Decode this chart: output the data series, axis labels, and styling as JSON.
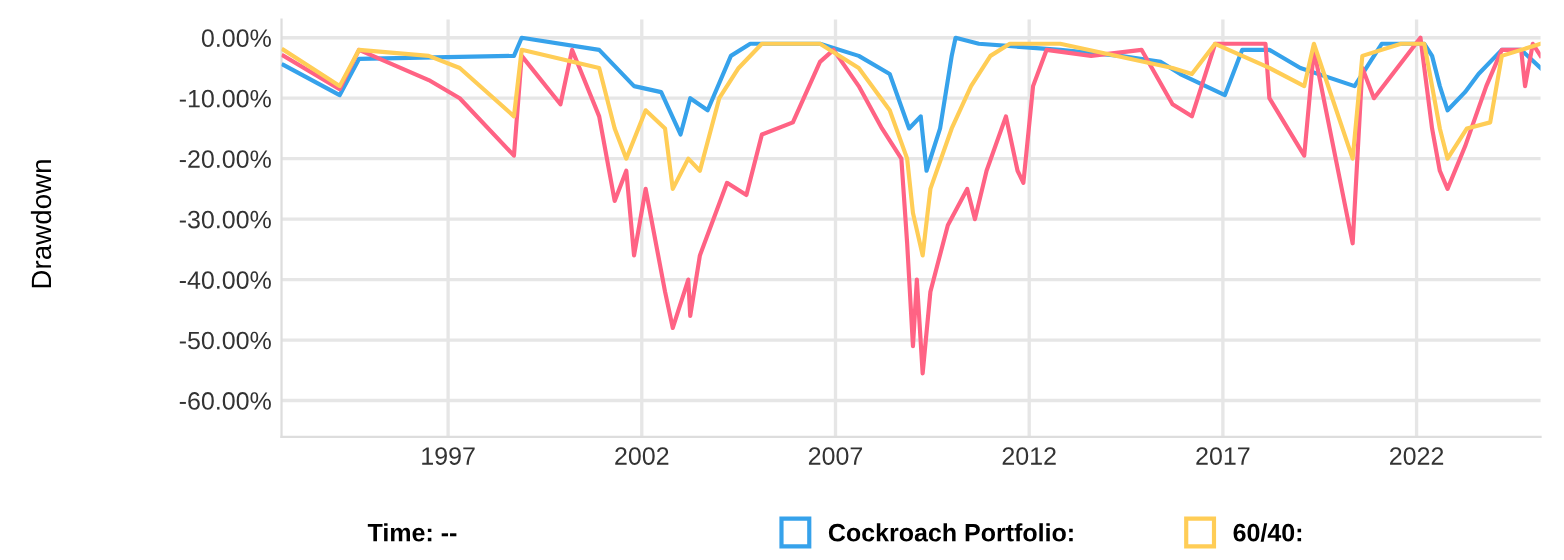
{
  "chart_data": {
    "type": "line",
    "ylabel": "Drawdown",
    "xlim": [
      1992.7,
      2025.2
    ],
    "xticks": [
      1997,
      2002,
      2007,
      2012,
      2017,
      2022
    ],
    "ylim": [
      -66,
      3
    ],
    "yticks": [
      {
        "value": 0,
        "label": "0.00%"
      },
      {
        "value": -10,
        "label": "-10.00%"
      },
      {
        "value": -20,
        "label": "-20.00%"
      },
      {
        "value": -30,
        "label": "-30.00%"
      },
      {
        "value": -40,
        "label": "-40.00%"
      },
      {
        "value": -50,
        "label": "-50.00%"
      },
      {
        "value": -60,
        "label": "-60.00%"
      }
    ],
    "grid": true,
    "legend": "bottom",
    "marker": "none",
    "line_style": "solid",
    "annotations": [
      "Time: --"
    ],
    "series": [
      {
        "name": "Cockroach Portfolio:",
        "color": "#36a2eb",
        "x": [
          1992.75,
          1994.2,
          1994.7,
          1998.7,
          1998.9,
          2000.9,
          2001.8,
          2002.5,
          2003.0,
          2003.25,
          2003.7,
          2004.3,
          2004.8,
          2006.6,
          2007.6,
          2008.4,
          2008.9,
          2009.2,
          2009.35,
          2009.7,
          2010.0,
          2010.1,
          2010.7,
          2012.8,
          2014.35,
          2015.4,
          2015.9,
          2017.05,
          2017.5,
          2018.2,
          2019.0,
          2020.4,
          2021.1,
          2022.2,
          2022.4,
          2022.6,
          2022.8,
          2023.25,
          2023.6,
          2024.2,
          2024.7,
          2025.2
        ],
        "values": [
          -4.5,
          -9.5,
          -3.5,
          -3,
          0,
          -2,
          -8,
          -9,
          -16,
          -10,
          -12,
          -3,
          -1,
          -1,
          -3,
          -6,
          -15,
          -13,
          -22,
          -15,
          -3,
          0,
          -1,
          -2,
          -3,
          -4,
          -6,
          -9.5,
          -2,
          -2,
          -5,
          -8,
          -1,
          -1,
          -3,
          -8,
          -12,
          -9,
          -6,
          -2,
          -2,
          -5
        ]
      },
      {
        "color": "#ff6384",
        "x": [
          1992.75,
          1994.2,
          1994.7,
          1996.5,
          1997.3,
          1998.7,
          1998.9,
          1999.9,
          2000.2,
          2000.9,
          2001.3,
          2001.6,
          2001.8,
          2002.1,
          2002.6,
          2002.8,
          2003.2,
          2003.25,
          2003.5,
          2004.2,
          2004.7,
          2005.1,
          2005.9,
          2006.6,
          2006.95,
          2007.6,
          2008.2,
          2008.7,
          2008.85,
          2009.0,
          2009.1,
          2009.25,
          2009.45,
          2009.9,
          2010.4,
          2010.6,
          2010.9,
          2011.4,
          2011.7,
          2011.85,
          2012.1,
          2012.45,
          2013.6,
          2014.9,
          2015.7,
          2016.2,
          2016.8,
          2018.1,
          2018.2,
          2019.1,
          2019.35,
          2020.35,
          2020.6,
          2020.9,
          2022.1,
          2022.4,
          2022.6,
          2022.8,
          2023.25,
          2023.8,
          2024.2,
          2024.7,
          2024.8,
          2025.0,
          2025.2
        ],
        "values": [
          -3,
          -8.5,
          -2,
          -7,
          -10,
          -19.5,
          -3,
          -11,
          -2,
          -13,
          -27,
          -22,
          -36,
          -25,
          -42,
          -48,
          -40,
          -46,
          -36,
          -24,
          -26,
          -16,
          -14,
          -4,
          -2,
          -8,
          -15,
          -20,
          -34,
          -51,
          -40,
          -55.5,
          -42,
          -31,
          -25,
          -30,
          -22,
          -13,
          -22,
          -24,
          -8,
          -2,
          -3,
          -2,
          -11,
          -13,
          -1,
          -1,
          -10,
          -19.5,
          -2,
          -34,
          -5,
          -10,
          0,
          -15,
          -22,
          -25,
          -18,
          -8,
          -2,
          -2,
          -8,
          -1,
          -3
        ]
      },
      {
        "name": "60/40:",
        "color": "#ffcd56",
        "x": [
          1992.75,
          1994.2,
          1994.7,
          1996.5,
          1997.3,
          1998.7,
          1998.9,
          2000.9,
          2001.3,
          2001.6,
          2002.1,
          2002.6,
          2002.8,
          2003.2,
          2003.5,
          2004.0,
          2004.5,
          2005.1,
          2006.6,
          2007.6,
          2008.4,
          2008.85,
          2009.0,
          2009.25,
          2009.45,
          2010.0,
          2010.5,
          2011.0,
          2011.5,
          2012.8,
          2015.7,
          2016.2,
          2016.8,
          2018.2,
          2019.1,
          2019.35,
          2020.35,
          2020.6,
          2021.6,
          2022.2,
          2022.4,
          2022.6,
          2022.8,
          2023.3,
          2023.9,
          2024.2,
          2025.2
        ],
        "values": [
          -2,
          -8,
          -2,
          -3,
          -5,
          -13,
          -2,
          -5,
          -15,
          -20,
          -12,
          -15,
          -25,
          -20,
          -22,
          -10,
          -5,
          -1,
          -1,
          -5,
          -12,
          -20,
          -29,
          -36,
          -25,
          -15,
          -8,
          -3,
          -1,
          -1,
          -5,
          -6,
          -1,
          -5,
          -8,
          -1,
          -20,
          -3,
          -1,
          -1,
          -8,
          -15,
          -20,
          -15,
          -14,
          -3,
          -1
        ]
      }
    ]
  }
}
